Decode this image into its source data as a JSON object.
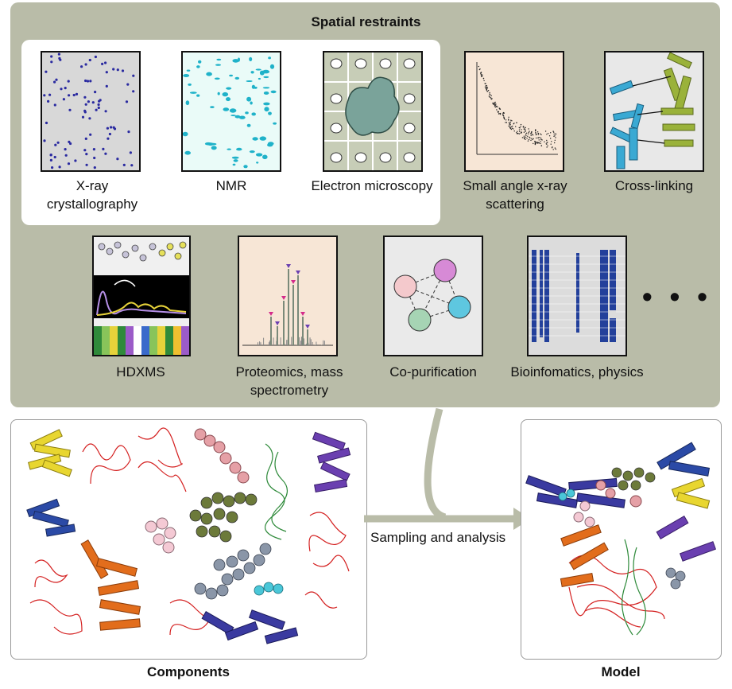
{
  "header": {
    "title": "Spatial restraints"
  },
  "methods": [
    {
      "label": "X-ray crystallography",
      "icon": "diffraction-pattern"
    },
    {
      "label": "NMR",
      "icon": "nmr-spectrum"
    },
    {
      "label": "Electron microscopy",
      "icon": "em-density-map"
    },
    {
      "label": "Small angle x-ray scattering",
      "icon": "saxs-curve"
    },
    {
      "label": "Cross-linking",
      "icon": "crosslink-helices"
    },
    {
      "label": "HDXMS",
      "icon": "hdx-exchange"
    },
    {
      "label": "Proteomics, mass spectrometry",
      "icon": "mass-spectrum"
    },
    {
      "label": "Co-purification",
      "icon": "copurification-network"
    },
    {
      "label": "Bioinfomatics, physics",
      "icon": "sequence-alignment"
    }
  ],
  "more_indicator": "• • •",
  "flow": {
    "label": "Sampling and analysis"
  },
  "components": {
    "label": "Components"
  },
  "model": {
    "label": "Model"
  }
}
